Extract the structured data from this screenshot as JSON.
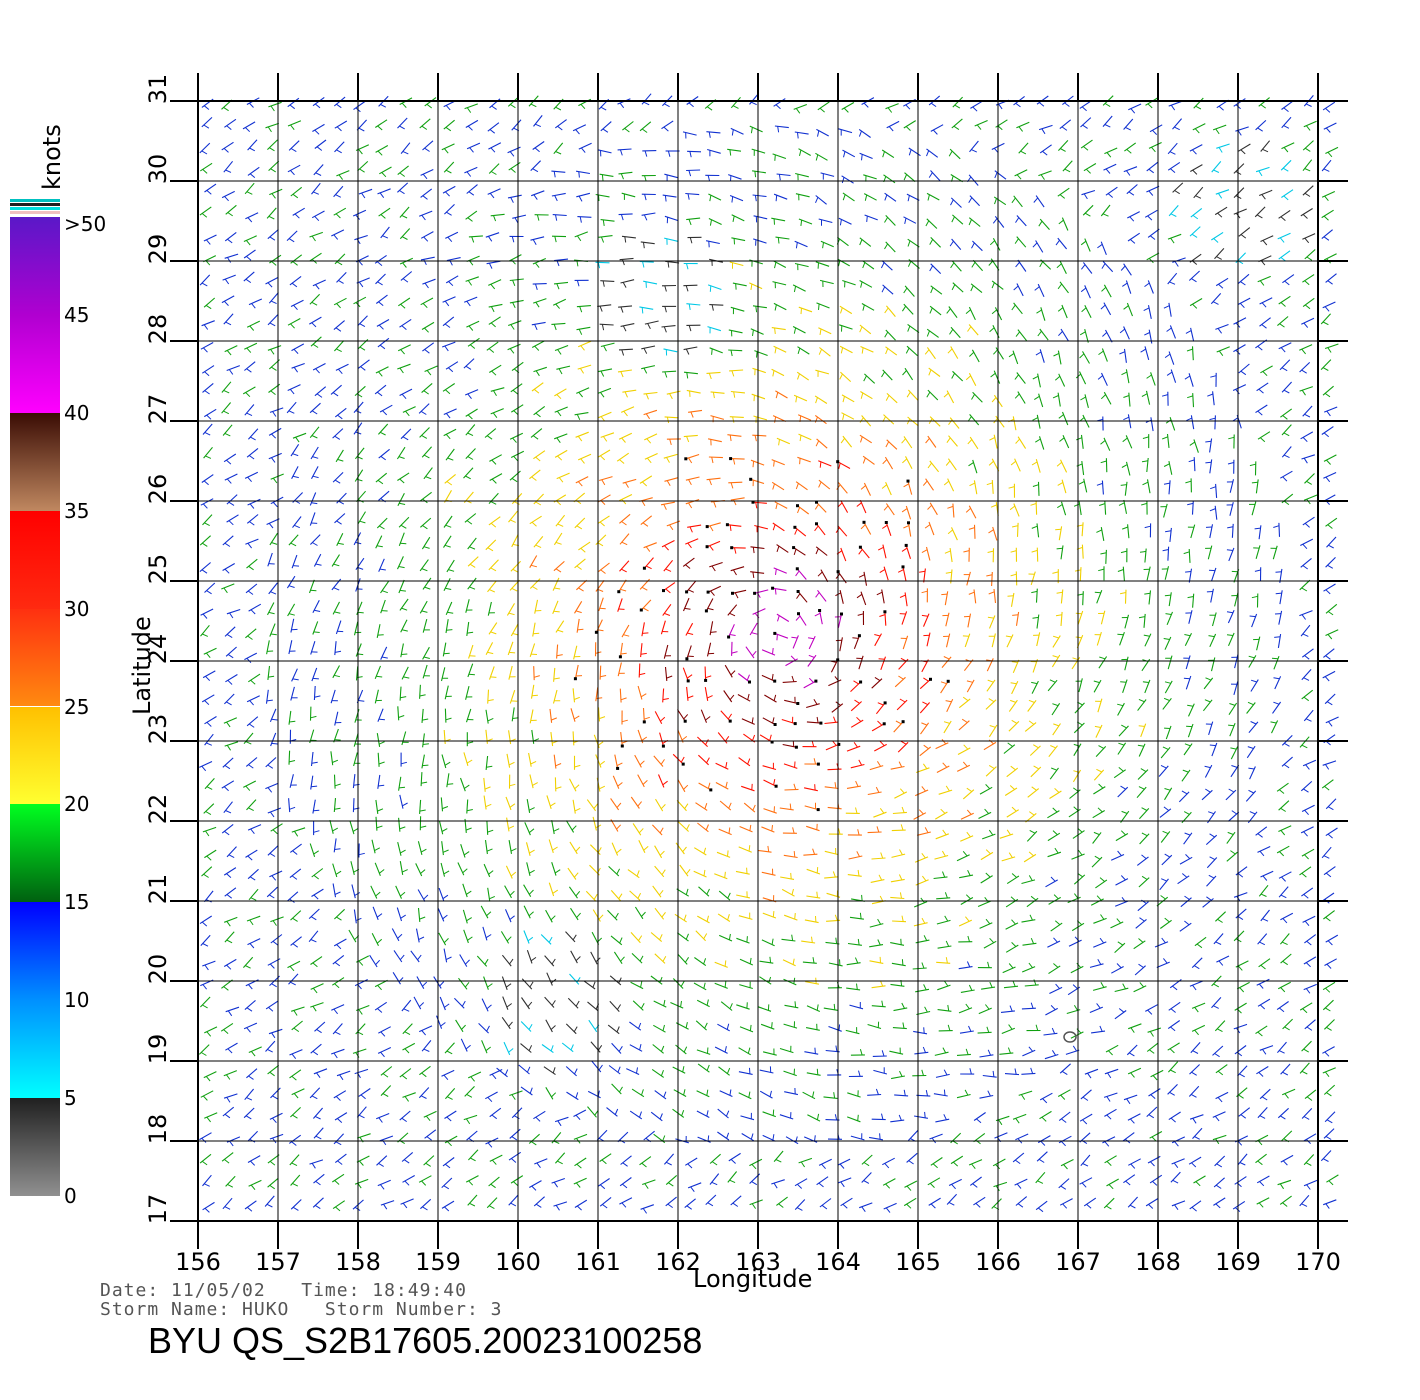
{
  "colorbar": {
    "units": "knots",
    "labels": [
      ">50",
      "45",
      "40",
      "35",
      "30",
      "25",
      "20",
      "15",
      "10",
      "5",
      "0"
    ],
    "segments": [
      {
        "from": 50,
        "to": 40,
        "colors": [
          "#5a18c8",
          "#b000d0",
          "#ff00ff"
        ]
      },
      {
        "from": 40,
        "to": 35,
        "colors": [
          "#3a0c04",
          "#c08860"
        ]
      },
      {
        "from": 35,
        "to": 30,
        "colors": [
          "#ff0000",
          "#ff2a10"
        ]
      },
      {
        "from": 30,
        "to": 25,
        "colors": [
          "#ff3010",
          "#ff8a10"
        ]
      },
      {
        "from": 25,
        "to": 20,
        "colors": [
          "#ffc000",
          "#ffff30"
        ]
      },
      {
        "from": 20,
        "to": 15,
        "colors": [
          "#00ff20",
          "#006010"
        ]
      },
      {
        "from": 15,
        "to": 10,
        "colors": [
          "#0000ff",
          "#0090ff"
        ]
      },
      {
        "from": 10,
        "to": 5,
        "colors": [
          "#0090ff",
          "#00ffff"
        ]
      },
      {
        "from": 5,
        "to": 0,
        "colors": [
          "#202020",
          "#909090"
        ]
      }
    ]
  },
  "map": {
    "lon_ticks": [
      "156",
      "157",
      "158",
      "159",
      "160",
      "161",
      "162",
      "163",
      "164",
      "165",
      "166",
      "167",
      "168",
      "169",
      "170"
    ],
    "lat_ticks": [
      "17",
      "18",
      "19",
      "20",
      "21",
      "22",
      "23",
      "24",
      "25",
      "26",
      "27",
      "28",
      "29",
      "30",
      "31"
    ],
    "lon_range": [
      156,
      170
    ],
    "lat_range": [
      17,
      31
    ],
    "xlabel": "Longitude",
    "ylabel": "Latitude",
    "storm_center_symbol": "circle-marker-icon",
    "storm_center": {
      "lon": 166.9,
      "lat": 19.3
    }
  },
  "info": {
    "date_line": "Date: 11/05/02   Time: 18:49:40",
    "storm_line": "Storm Name: HUKO   Storm Number: 3",
    "title": "BYU QS_S2B17605.20023100258"
  }
}
